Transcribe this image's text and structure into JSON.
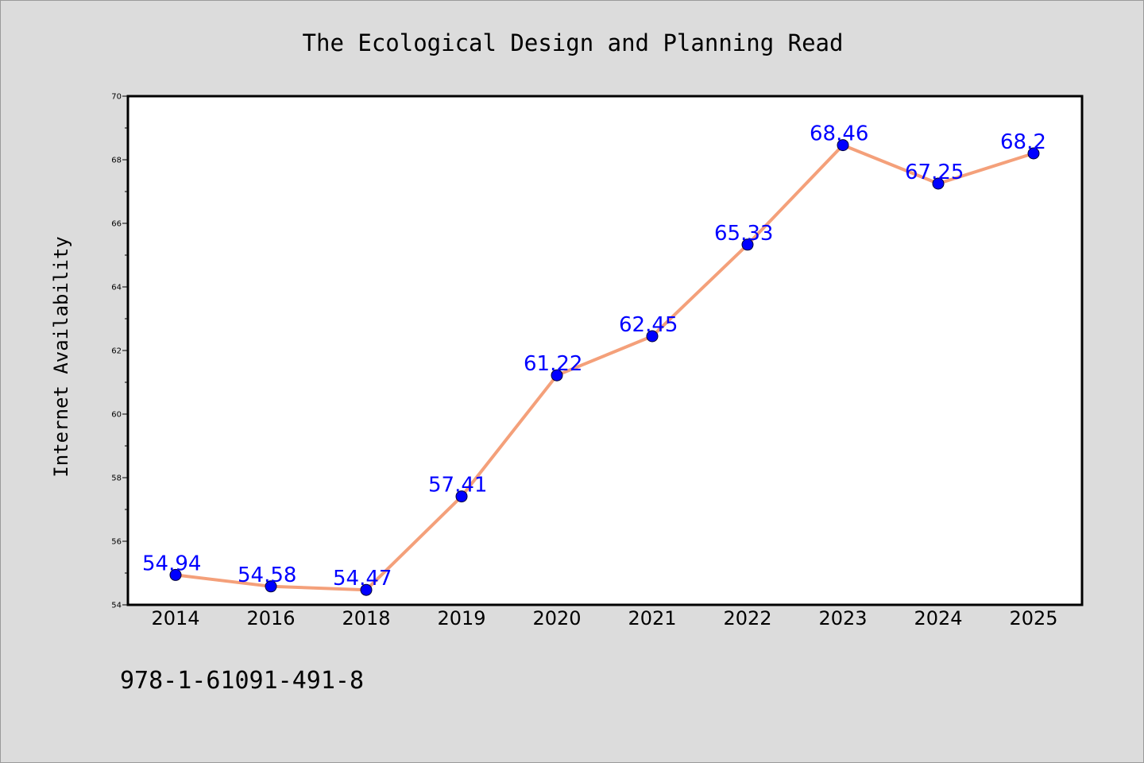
{
  "chart_data": {
    "type": "line",
    "title": "The Ecological Design and Planning Read",
    "xlabel": "",
    "ylabel": "Internet Availability",
    "categories": [
      "2014",
      "2016",
      "2018",
      "2019",
      "2020",
      "2021",
      "2022",
      "2023",
      "2024",
      "2025"
    ],
    "series": [
      {
        "values": [
          54.94,
          54.58,
          54.47,
          57.41,
          61.22,
          62.45,
          65.33,
          68.46,
          67.25,
          68.2
        ],
        "data_labels": [
          "54.94",
          "54.58",
          "54.47",
          "57.41",
          "61.22",
          "62.45",
          "65.33",
          "68.46",
          "67.25",
          "68.2"
        ]
      }
    ],
    "ylim": [
      54,
      70
    ],
    "yticks": [
      "54",
      "56",
      "58",
      "60",
      "62",
      "64",
      "66",
      "68",
      "70"
    ],
    "grid": false,
    "legend": "none",
    "colors": {
      "line": "#f4a07a",
      "marker": "#0000ff",
      "data_label": "#0000ff",
      "background": "#dcdcdc",
      "plot_area": "#ffffff"
    }
  },
  "footer": {
    "isbn": "978-1-61091-491-8"
  }
}
